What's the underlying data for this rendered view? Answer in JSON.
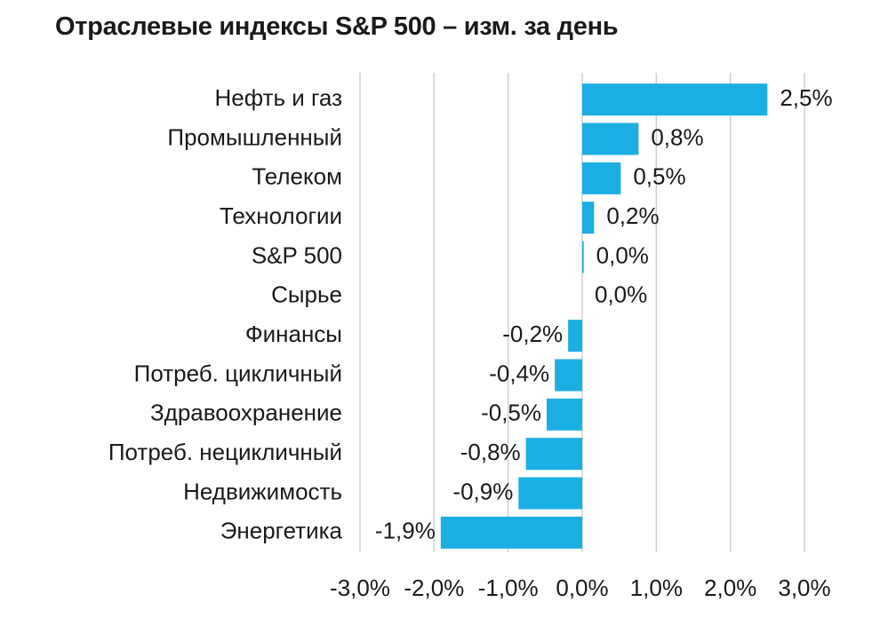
{
  "chart_data": {
    "type": "bar",
    "orientation": "horizontal",
    "title": "Отраслевые индексы S&P 500 – изм. за день",
    "xlabel": "",
    "ylabel": "",
    "xlim": [
      -3.0,
      3.0
    ],
    "x_ticks": [
      -3.0,
      -2.0,
      -1.0,
      0.0,
      1.0,
      2.0,
      3.0
    ],
    "x_tick_labels": [
      "-3,0%",
      "-2,0%",
      "-1,0%",
      "0,0%",
      "1,0%",
      "2,0%",
      "3,0%"
    ],
    "grid": "vertical",
    "bar_color": "#1aaee3",
    "categories": [
      "Нефть и газ",
      "Промышленный",
      "Телеком",
      "Технологии",
      "S&P 500",
      "Сырье",
      "Финансы",
      "Потреб. цикличный",
      "Здравоохранение",
      "Потреб. нецикличный",
      "Недвижимость",
      "Энергетика"
    ],
    "values": [
      2.5,
      0.76,
      0.52,
      0.16,
      0.02,
      0.0,
      -0.19,
      -0.37,
      -0.48,
      -0.76,
      -0.86,
      -1.91
    ],
    "value_labels": [
      "2,5%",
      "0,8%",
      "0,5%",
      "0,2%",
      "0,0%",
      "0,0%",
      "-0,2%",
      "-0,4%",
      "-0,5%",
      "-0,8%",
      "-0,9%",
      "-1,9%"
    ]
  }
}
